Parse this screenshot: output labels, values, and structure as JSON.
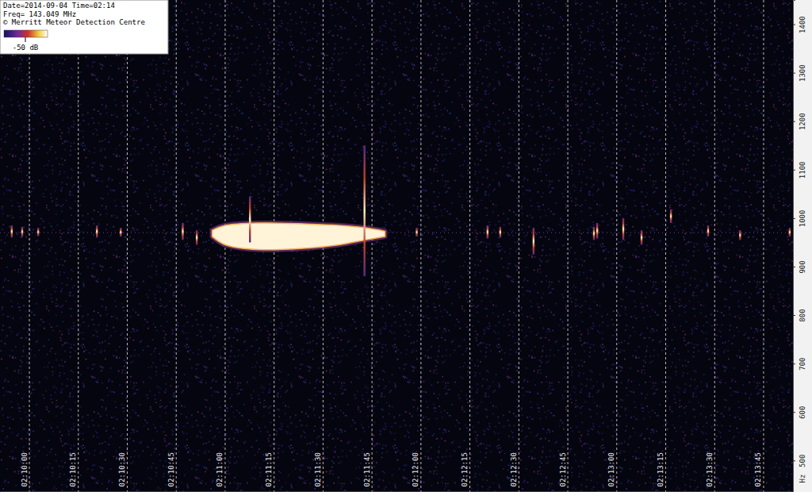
{
  "chart_data": {
    "type": "spectrogram",
    "header": [
      "Date=2014-09-04 Time=02:14",
      "Freq= 143.049 MHz",
      "© Merritt Meteor Detection Centre"
    ],
    "colorbar_label": "-50 dB",
    "y_label": "Hz",
    "xlim": [
      -9,
      234
    ],
    "xticks": [
      {
        "value": 0,
        "label": "02:10:00"
      },
      {
        "value": 15,
        "label": "02:10:15"
      },
      {
        "value": 30,
        "label": "02:10:30"
      },
      {
        "value": 45,
        "label": "02:10:45"
      },
      {
        "value": 60,
        "label": "02:11:00"
      },
      {
        "value": 75,
        "label": "02:11:15"
      },
      {
        "value": 90,
        "label": "02:11:30"
      },
      {
        "value": 105,
        "label": "02:11:45"
      },
      {
        "value": 120,
        "label": "02:12:00"
      },
      {
        "value": 135,
        "label": "02:12:15"
      },
      {
        "value": 150,
        "label": "02:12:30"
      },
      {
        "value": 165,
        "label": "02:12:45"
      },
      {
        "value": 180,
        "label": "02:13:00"
      },
      {
        "value": 195,
        "label": "02:13:15"
      },
      {
        "value": 210,
        "label": "02:13:30"
      },
      {
        "value": 225,
        "label": "02:13:45"
      }
    ],
    "ylim": [
      435,
      1450
    ],
    "yticks": [
      500,
      600,
      700,
      800,
      900,
      1000,
      1100,
      1200,
      1300,
      1400
    ],
    "grid": true,
    "carrier_hz": 970,
    "echo": {
      "t": [
        56,
        60,
        70,
        85,
        95,
        103,
        109
      ],
      "low": [
        962,
        945,
        935,
        938,
        945,
        955,
        962
      ],
      "high": [
        975,
        985,
        990,
        988,
        985,
        980,
        973
      ]
    },
    "pings": {
      "t": [
        -5.4,
        -2.2,
        2.7,
        20.7,
        28,
        47,
        51.3,
        67.6,
        102.7,
        118.7,
        140.4,
        144.3,
        154.5,
        173,
        174,
        182,
        187.6,
        196.6,
        208,
        217.8,
        233
      ],
      "low": [
        960,
        962,
        963,
        960,
        962,
        955,
        945,
        950,
        880,
        962,
        958,
        960,
        925,
        955,
        958,
        955,
        945,
        990,
        962,
        955,
        962
      ],
      "high": [
        985,
        982,
        980,
        985,
        980,
        990,
        975,
        1045,
        1150,
        980,
        985,
        982,
        980,
        982,
        990,
        1000,
        975,
        1018,
        985,
        975,
        980
      ]
    }
  }
}
